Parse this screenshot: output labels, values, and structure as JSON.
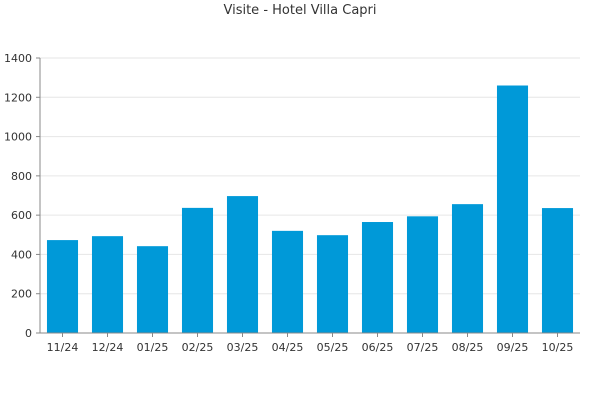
{
  "chart_data": {
    "type": "bar",
    "title": "Visite - Hotel Villa Capri",
    "xlabel": "",
    "ylabel": "",
    "categories": [
      "11/24",
      "12/24",
      "01/25",
      "02/25",
      "03/25",
      "04/25",
      "05/25",
      "06/25",
      "07/25",
      "08/25",
      "09/25",
      "10/25"
    ],
    "values": [
      473,
      493,
      442,
      637,
      697,
      520,
      498,
      565,
      594,
      656,
      1260,
      636
    ],
    "ylim": [
      0,
      1400
    ],
    "yticks": [
      0,
      200,
      400,
      600,
      800,
      1000,
      1200,
      1400
    ],
    "grid": true,
    "legend": "none",
    "colors": {
      "bar": "#0099d8",
      "grid": "#e6e6e6",
      "axis": "#888888",
      "text": "#333333"
    }
  }
}
